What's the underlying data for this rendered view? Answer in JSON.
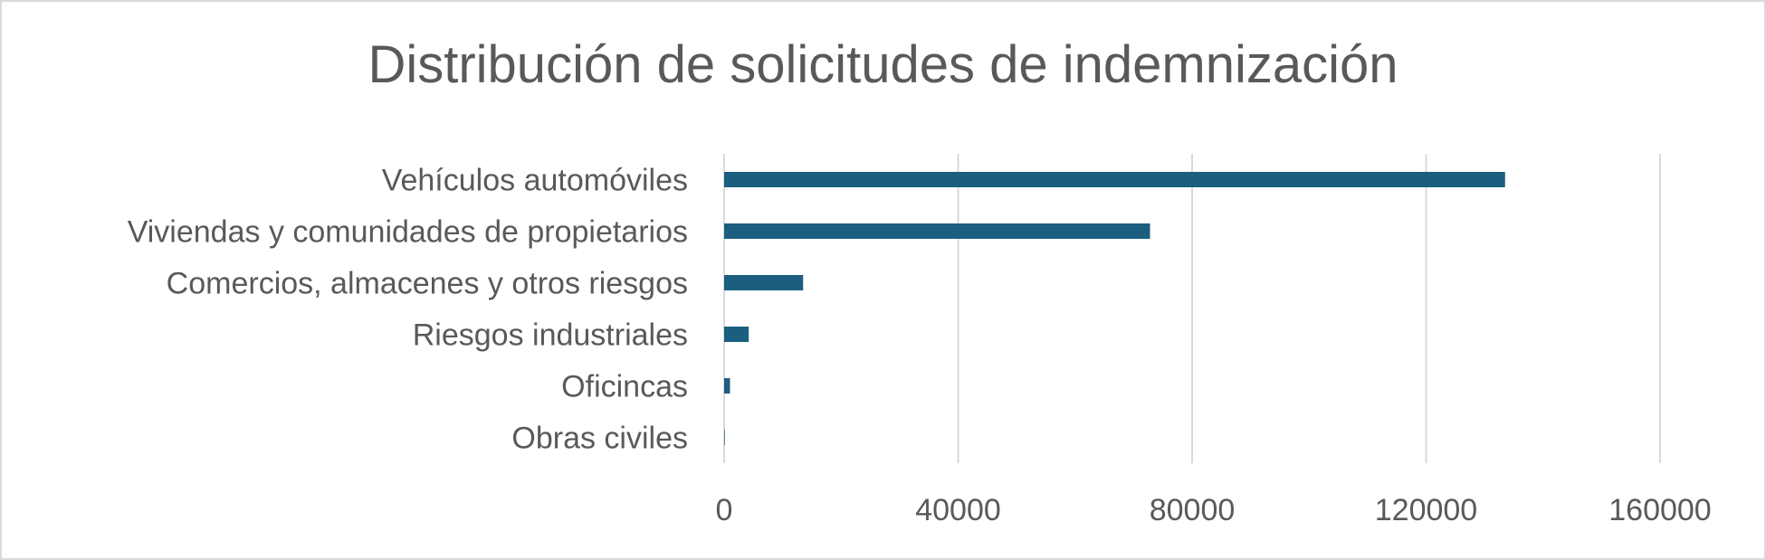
{
  "chart_data": {
    "type": "bar",
    "orientation": "horizontal",
    "title": "Distribución de solicitudes de indemnización",
    "categories": [
      "Vehículos automóviles",
      "Viviendas y comunidades de propietarios",
      "Comercios, almacenes y otros riesgos",
      "Riesgos industriales",
      "Oficincas",
      "Obras civiles"
    ],
    "values": [
      133500,
      72800,
      13500,
      4200,
      1000,
      100
    ],
    "xlim": [
      0,
      160000
    ],
    "xticks": [
      "0",
      "40000",
      "80000",
      "120000",
      "160000"
    ],
    "xlabel": "",
    "ylabel": "",
    "grid": "vertical",
    "legend": "none",
    "bar_color": "#1b5e80"
  }
}
